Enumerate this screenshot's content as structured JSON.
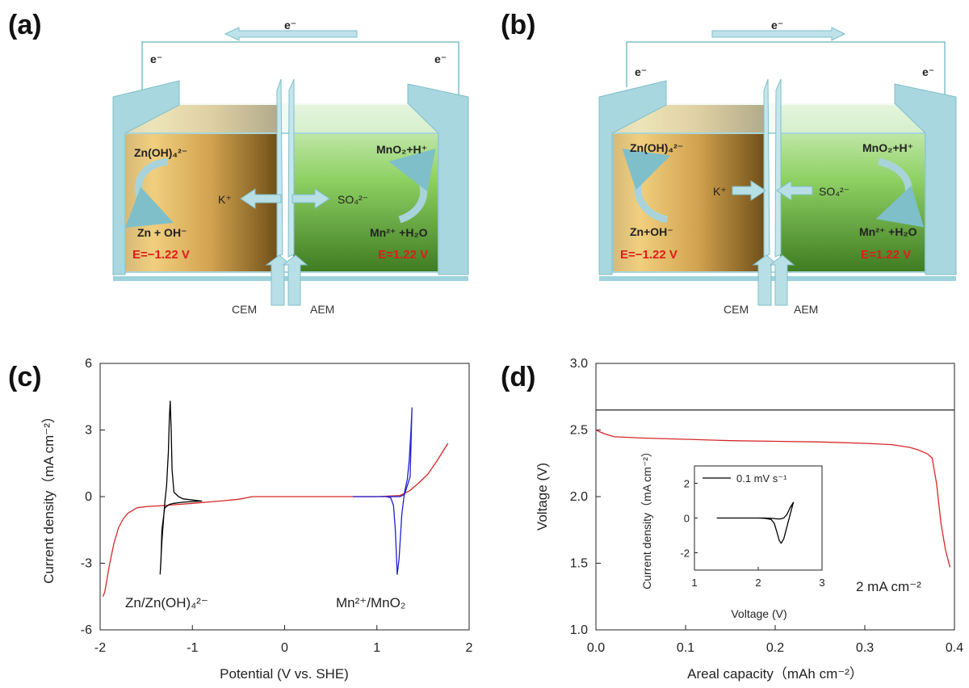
{
  "panels": {
    "a": {
      "label": "(a)",
      "electron_top": "e⁻",
      "electron_left": "e⁻",
      "electron_right": "e⁻",
      "anode_species": "Zn(OH)₄²⁻",
      "anode_product": "Zn + OH⁻",
      "cathode_species": "MnO₂+H⁺",
      "cathode_product": "Mn²⁺ +H₂O",
      "cation": "K⁺",
      "anion": "SO₄²⁻",
      "anode_potential": "E=−1.22 V",
      "cathode_potential": "E=1.22 V",
      "cem": "CEM",
      "aem": "AEM"
    },
    "b": {
      "label": "(b)",
      "electron_top": "e⁻",
      "electron_left": "e⁻",
      "electron_right": "e⁻",
      "anode_species": "Zn(OH)₄²⁻",
      "anode_product": "Zn+OH⁻",
      "cathode_species": "MnO₂+H⁺",
      "cathode_product": "Mn²⁺ +H₂O",
      "cation": "K⁺",
      "anion": "SO₄²⁻",
      "anode_potential": "E=−1.22 V",
      "cathode_potential": "E=1.22 V",
      "cem": "CEM",
      "aem": "AEM"
    },
    "c": {
      "label": "(c)"
    },
    "d": {
      "label": "(d)"
    }
  },
  "chart_data": [
    {
      "id": "c",
      "type": "line",
      "xlabel": "Potential (V vs. SHE)",
      "ylabel": "Current density（mA cm⁻²）",
      "xlim": [
        -2,
        2
      ],
      "ylim": [
        -6,
        6
      ],
      "xticks": [
        "-2",
        "-1",
        "0",
        "1",
        "2"
      ],
      "yticks": [
        "-6",
        "-3",
        "0",
        "3",
        "6"
      ],
      "annotations": [
        "Zn/Zn(OH)₄²⁻",
        "Mn²⁺/MnO₂"
      ],
      "series": [
        {
          "color": "#d62728",
          "x": [
            -1.97,
            -1.95,
            -1.9,
            -1.85,
            -1.8,
            -1.75,
            -1.7,
            -1.6,
            -1.5,
            -1.3,
            -1.0,
            -0.7,
            -0.5,
            -0.35,
            0.0,
            0.5,
            1.0,
            1.25,
            1.35,
            1.45,
            1.55,
            1.65,
            1.77
          ],
          "y": [
            -4.5,
            -4.3,
            -3.1,
            -2.1,
            -1.4,
            -1.0,
            -0.75,
            -0.5,
            -0.45,
            -0.4,
            -0.3,
            -0.2,
            -0.12,
            0.0,
            0.0,
            0.0,
            0.0,
            0.05,
            0.25,
            0.6,
            1.0,
            1.6,
            2.4
          ]
        },
        {
          "color": "#000000",
          "x": [
            -1.35,
            -1.33,
            -1.3,
            -1.28,
            -1.26,
            -1.25,
            -1.24,
            -1.23,
            -1.22,
            -1.2,
            -1.15,
            -1.1,
            -0.9,
            -1.1,
            -1.2,
            -1.25,
            -1.3,
            -1.33,
            -1.34,
            -1.35
          ],
          "y": [
            -3.5,
            -2.0,
            -0.3,
            0.5,
            2.0,
            3.5,
            4.3,
            3.0,
            1.2,
            0.2,
            0.0,
            -0.1,
            -0.2,
            -0.25,
            -0.3,
            -0.35,
            -0.5,
            -1.5,
            -2.8,
            -3.5
          ]
        },
        {
          "color": "#1f1fd4",
          "x": [
            0.74,
            1.0,
            1.1,
            1.15,
            1.18,
            1.2,
            1.22,
            1.24,
            1.27,
            1.3,
            1.33,
            1.35,
            1.37,
            1.38,
            1.36,
            1.3,
            1.25,
            1.2,
            1.1,
            1.0,
            0.8
          ],
          "y": [
            0.0,
            0.0,
            0.0,
            -0.05,
            -0.4,
            -1.5,
            -3.5,
            -2.8,
            -0.8,
            0.2,
            0.8,
            1.6,
            3.0,
            4.0,
            0.9,
            0.1,
            0.0,
            0.0,
            0.0,
            0.0,
            0.0
          ]
        }
      ]
    },
    {
      "id": "d",
      "type": "line",
      "xlabel": "Areal capacity（mAh cm⁻²）",
      "ylabel": "Voltage (V)",
      "xlim": [
        0,
        0.4
      ],
      "ylim": [
        1.0,
        3.0
      ],
      "xticks": [
        "0.0",
        "0.1",
        "0.2",
        "0.3",
        "0.4"
      ],
      "yticks": [
        "1.0",
        "1.5",
        "2.0",
        "2.5",
        "3.0"
      ],
      "annotation": "2 mA cm⁻²",
      "reference_line_y": 2.65,
      "series": [
        {
          "color": "#d62728",
          "x": [
            0.0,
            0.003,
            0.01,
            0.02,
            0.05,
            0.1,
            0.15,
            0.2,
            0.25,
            0.3,
            0.33,
            0.35,
            0.36,
            0.37,
            0.375,
            0.38,
            0.385,
            0.39,
            0.395
          ],
          "y": [
            2.5,
            2.49,
            2.47,
            2.45,
            2.44,
            2.43,
            2.42,
            2.415,
            2.41,
            2.4,
            2.39,
            2.37,
            2.35,
            2.32,
            2.29,
            2.1,
            1.8,
            1.6,
            1.47
          ]
        }
      ],
      "inset": {
        "type": "line",
        "xlabel": "Voltage (V)",
        "ylabel": "Current density（mA cm⁻²）",
        "xlim": [
          1,
          3
        ],
        "ylim": [
          -3,
          3
        ],
        "xticks": [
          "1",
          "2",
          "3"
        ],
        "yticks": [
          "-2",
          "0",
          "2"
        ],
        "legend": "0.1 mV s⁻¹",
        "series": [
          {
            "color": "#000000",
            "x": [
              1.35,
              1.6,
              1.8,
              2.0,
              2.1,
              2.2,
              2.25,
              2.3,
              2.33,
              2.36,
              2.4,
              2.45,
              2.5,
              2.55,
              2.5,
              2.45,
              2.4,
              2.35,
              2.3,
              2.25,
              2.2,
              2.1,
              2.0,
              1.8,
              1.6,
              1.35
            ],
            "y": [
              0.0,
              0.0,
              0.0,
              0.0,
              -0.02,
              -0.08,
              -0.3,
              -0.9,
              -1.3,
              -1.45,
              -1.2,
              -0.5,
              0.2,
              0.9,
              0.6,
              0.2,
              0.0,
              -0.05,
              -0.05,
              -0.03,
              -0.02,
              0.0,
              0.0,
              0.0,
              0.0,
              0.0
            ]
          }
        ]
      }
    }
  ]
}
